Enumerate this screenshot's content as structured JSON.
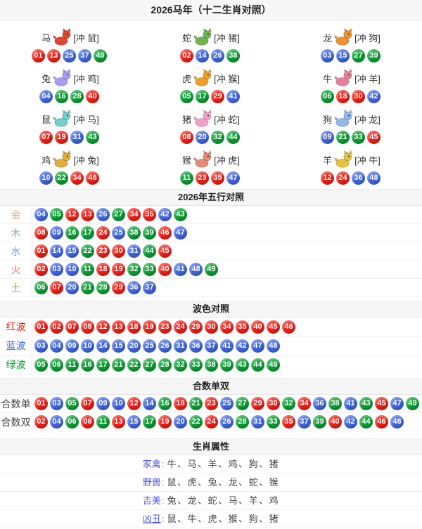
{
  "title": "2026马年（十二生肖对照）",
  "ball_colors": {
    "red": "#f21d14",
    "blue": "#3f66e0",
    "green": "#0a9e32"
  },
  "wave_sets": {
    "red": [
      "01",
      "02",
      "07",
      "08",
      "12",
      "13",
      "18",
      "19",
      "23",
      "24",
      "29",
      "30",
      "34",
      "35",
      "40",
      "45",
      "46"
    ],
    "blue": [
      "03",
      "04",
      "09",
      "10",
      "14",
      "15",
      "20",
      "25",
      "26",
      "31",
      "36",
      "37",
      "41",
      "42",
      "47",
      "48"
    ],
    "green": [
      "05",
      "06",
      "11",
      "16",
      "17",
      "21",
      "22",
      "27",
      "28",
      "32",
      "33",
      "38",
      "39",
      "43",
      "44",
      "49"
    ]
  },
  "zodiac_section": {
    "cells": [
      {
        "name": "马",
        "icon": "horse-icon",
        "icon_color": "#e0452f",
        "clash": "[冲 鼠]",
        "balls": [
          "01",
          "13",
          "25",
          "37",
          "49"
        ]
      },
      {
        "name": "蛇",
        "icon": "snake-icon",
        "icon_color": "#6db54c",
        "clash": "[冲 猪]",
        "balls": [
          "02",
          "14",
          "26",
          "38"
        ]
      },
      {
        "name": "龙",
        "icon": "dragon-icon",
        "icon_color": "#ef9331",
        "clash": "[冲 狗]",
        "balls": [
          "03",
          "15",
          "27",
          "39"
        ]
      },
      {
        "name": "兔",
        "icon": "rabbit-icon",
        "icon_color": "#a89bf0",
        "clash": "[冲 鸡]",
        "balls": [
          "04",
          "16",
          "28",
          "40"
        ]
      },
      {
        "name": "虎",
        "icon": "tiger-icon",
        "icon_color": "#f0a028",
        "clash": "[冲 猴]",
        "balls": [
          "05",
          "17",
          "29",
          "41"
        ]
      },
      {
        "name": "牛",
        "icon": "ox-icon",
        "icon_color": "#e87f9a",
        "clash": "[冲 羊]",
        "balls": [
          "06",
          "18",
          "30",
          "42"
        ]
      },
      {
        "name": "鼠",
        "icon": "rat-icon",
        "icon_color": "#72cfc9",
        "clash": "[冲 马]",
        "balls": [
          "07",
          "19",
          "31",
          "43"
        ]
      },
      {
        "name": "猪",
        "icon": "pig-icon",
        "icon_color": "#f2a0c8",
        "clash": "[冲 蛇]",
        "balls": [
          "08",
          "20",
          "32",
          "44"
        ]
      },
      {
        "name": "狗",
        "icon": "dog-icon",
        "icon_color": "#8fb8ef",
        "clash": "[冲 龙]",
        "balls": [
          "09",
          "21",
          "33",
          "45"
        ]
      },
      {
        "name": "鸡",
        "icon": "rooster-icon",
        "icon_color": "#dfaf3a",
        "clash": "[冲 兔]",
        "balls": [
          "10",
          "22",
          "34",
          "46"
        ]
      },
      {
        "name": "猴",
        "icon": "monkey-icon",
        "icon_color": "#e58b77",
        "clash": "[冲 虎]",
        "balls": [
          "11",
          "23",
          "35",
          "47"
        ]
      },
      {
        "name": "羊",
        "icon": "goat-icon",
        "icon_color": "#e5c33f",
        "clash": "[冲 牛]",
        "balls": [
          "12",
          "24",
          "36",
          "48"
        ]
      }
    ]
  },
  "elements_section": {
    "header": "2026年五行对照",
    "rows": [
      {
        "label": "金",
        "label_color": "#dcb53c",
        "balls": [
          "04",
          "05",
          "12",
          "13",
          "26",
          "27",
          "34",
          "35",
          "42",
          "43"
        ]
      },
      {
        "label": "木",
        "label_color": "#6fbf6f",
        "balls": [
          "08",
          "09",
          "16",
          "17",
          "24",
          "25",
          "38",
          "39",
          "46",
          "47"
        ]
      },
      {
        "label": "水",
        "label_color": "#6f9fe8",
        "balls": [
          "01",
          "14",
          "15",
          "22",
          "23",
          "30",
          "31",
          "44",
          "45"
        ]
      },
      {
        "label": "火",
        "label_color": "#ef7460",
        "balls": [
          "02",
          "03",
          "10",
          "11",
          "18",
          "19",
          "32",
          "33",
          "40",
          "41",
          "48",
          "49"
        ]
      },
      {
        "label": "土",
        "label_color": "#c39b35",
        "balls": [
          "06",
          "07",
          "20",
          "21",
          "28",
          "29",
          "36",
          "37"
        ]
      }
    ]
  },
  "waves_section": {
    "header": "波色对照",
    "rows": [
      {
        "label": "红波",
        "label_color": "#f21d14",
        "balls": [
          "01",
          "02",
          "07",
          "08",
          "12",
          "13",
          "18",
          "19",
          "23",
          "24",
          "29",
          "30",
          "34",
          "35",
          "40",
          "45",
          "46"
        ]
      },
      {
        "label": "蓝波",
        "label_color": "#3f66e0",
        "balls": [
          "03",
          "04",
          "09",
          "10",
          "14",
          "15",
          "20",
          "25",
          "26",
          "31",
          "36",
          "37",
          "41",
          "42",
          "47",
          "48"
        ]
      },
      {
        "label": "绿波",
        "label_color": "#0a9e32",
        "balls": [
          "05",
          "06",
          "11",
          "16",
          "17",
          "21",
          "22",
          "27",
          "28",
          "32",
          "33",
          "38",
          "39",
          "43",
          "44",
          "49"
        ]
      }
    ]
  },
  "sums_section": {
    "header": "合数单双",
    "rows": [
      {
        "label": "合数单",
        "label_color": "#444444",
        "balls": [
          "01",
          "03",
          "05",
          "07",
          "09",
          "10",
          "12",
          "14",
          "16",
          "18",
          "21",
          "23",
          "25",
          "27",
          "29",
          "30",
          "32",
          "34",
          "36",
          "38",
          "41",
          "43",
          "45",
          "47",
          "49"
        ]
      },
      {
        "label": "合数双",
        "label_color": "#444444",
        "balls": [
          "02",
          "04",
          "06",
          "08",
          "11",
          "13",
          "15",
          "17",
          "19",
          "20",
          "22",
          "24",
          "26",
          "28",
          "31",
          "33",
          "35",
          "37",
          "39",
          "40",
          "42",
          "44",
          "46",
          "48"
        ]
      }
    ]
  },
  "attributes_section": {
    "header": "生肖属性",
    "label_color": "#5156e4",
    "colon": ":",
    "rows": [
      {
        "label": "家禽",
        "value": "牛、马、羊、鸡、狗、猪",
        "underline": false
      },
      {
        "label": "野兽",
        "value": "鼠、虎、兔、龙、蛇、猴",
        "underline": false
      },
      {
        "label": "吉美",
        "value": "兔、龙、蛇、马、羊、鸡",
        "underline": false
      },
      {
        "label": "凶丑",
        "value": "鼠、牛、虎、猴、狗、猪",
        "underline": true
      }
    ]
  }
}
